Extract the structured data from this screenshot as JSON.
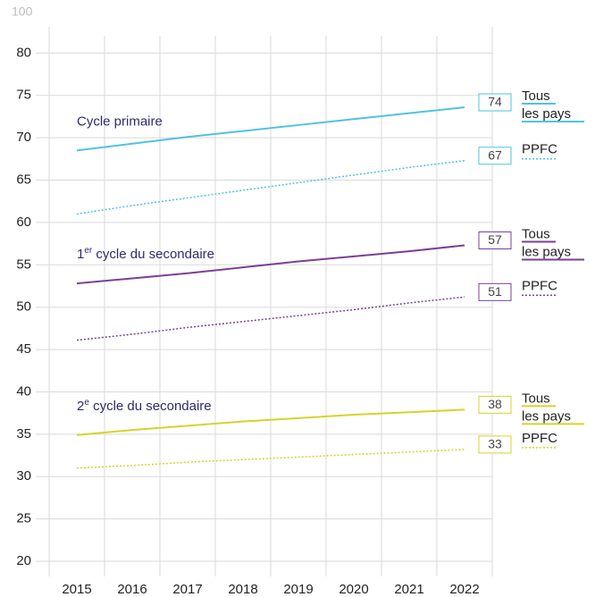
{
  "chart_data": {
    "type": "line",
    "y_top_label": "100",
    "categories": [
      "2015",
      "2016",
      "2017",
      "2018",
      "2019",
      "2020",
      "2021",
      "2022"
    ],
    "ylim": [
      20,
      85
    ],
    "yticks": [
      20,
      25,
      30,
      35,
      40,
      45,
      50,
      55,
      60,
      65,
      70,
      75,
      80
    ],
    "grid": true,
    "groups": [
      {
        "label": "Cycle primaire",
        "series": [
          0,
          1
        ]
      },
      {
        "label_num": "1",
        "label_sup": "er",
        "label_rest": " cycle du secondaire",
        "series": [
          2,
          3
        ]
      },
      {
        "label_num": "2",
        "label_sup": "e",
        "label_rest": " cycle du secondaire",
        "series": [
          4,
          5
        ]
      }
    ],
    "series": [
      {
        "name": "Tous les pays",
        "color": "#4fc3e0",
        "dash": "solid",
        "values": [
          68.5,
          69.3,
          70.1,
          70.8,
          71.5,
          72.2,
          72.9,
          73.6
        ],
        "value_labels": [
          null,
          null,
          null,
          null,
          null,
          null,
          null,
          "74"
        ]
      },
      {
        "name": "PPFC",
        "color": "#4fc3e0",
        "dash": "dotted",
        "values": [
          61,
          62,
          62.9,
          63.8,
          64.7,
          65.6,
          66.5,
          67.3
        ],
        "value_labels": [
          null,
          null,
          null,
          null,
          null,
          null,
          null,
          "67"
        ]
      },
      {
        "name": "Tous les pays",
        "color": "#7b3f98",
        "dash": "solid",
        "values": [
          52.8,
          53.4,
          54,
          54.7,
          55.4,
          56,
          56.6,
          57.3
        ],
        "value_labels": [
          null,
          null,
          null,
          null,
          null,
          null,
          null,
          "57"
        ]
      },
      {
        "name": "PPFC",
        "color": "#7b3f98",
        "dash": "dotted",
        "values": [
          46.1,
          46.8,
          47.6,
          48.3,
          49,
          49.7,
          50.5,
          51.2
        ],
        "value_labels": [
          null,
          null,
          null,
          null,
          null,
          null,
          null,
          "51"
        ]
      },
      {
        "name": "Tous les pays",
        "color": "#d4d42a",
        "dash": "solid",
        "values": [
          34.9,
          35.5,
          36,
          36.5,
          36.9,
          37.3,
          37.6,
          37.9
        ],
        "value_labels": [
          null,
          null,
          null,
          null,
          null,
          null,
          null,
          "38"
        ]
      },
      {
        "name": "PPFC",
        "color": "#d4d42a",
        "dash": "dotted",
        "values": [
          31,
          31.3,
          31.7,
          32,
          32.3,
          32.6,
          32.9,
          33.2
        ],
        "value_labels": [
          null,
          null,
          null,
          null,
          null,
          null,
          null,
          "33"
        ]
      }
    ]
  }
}
